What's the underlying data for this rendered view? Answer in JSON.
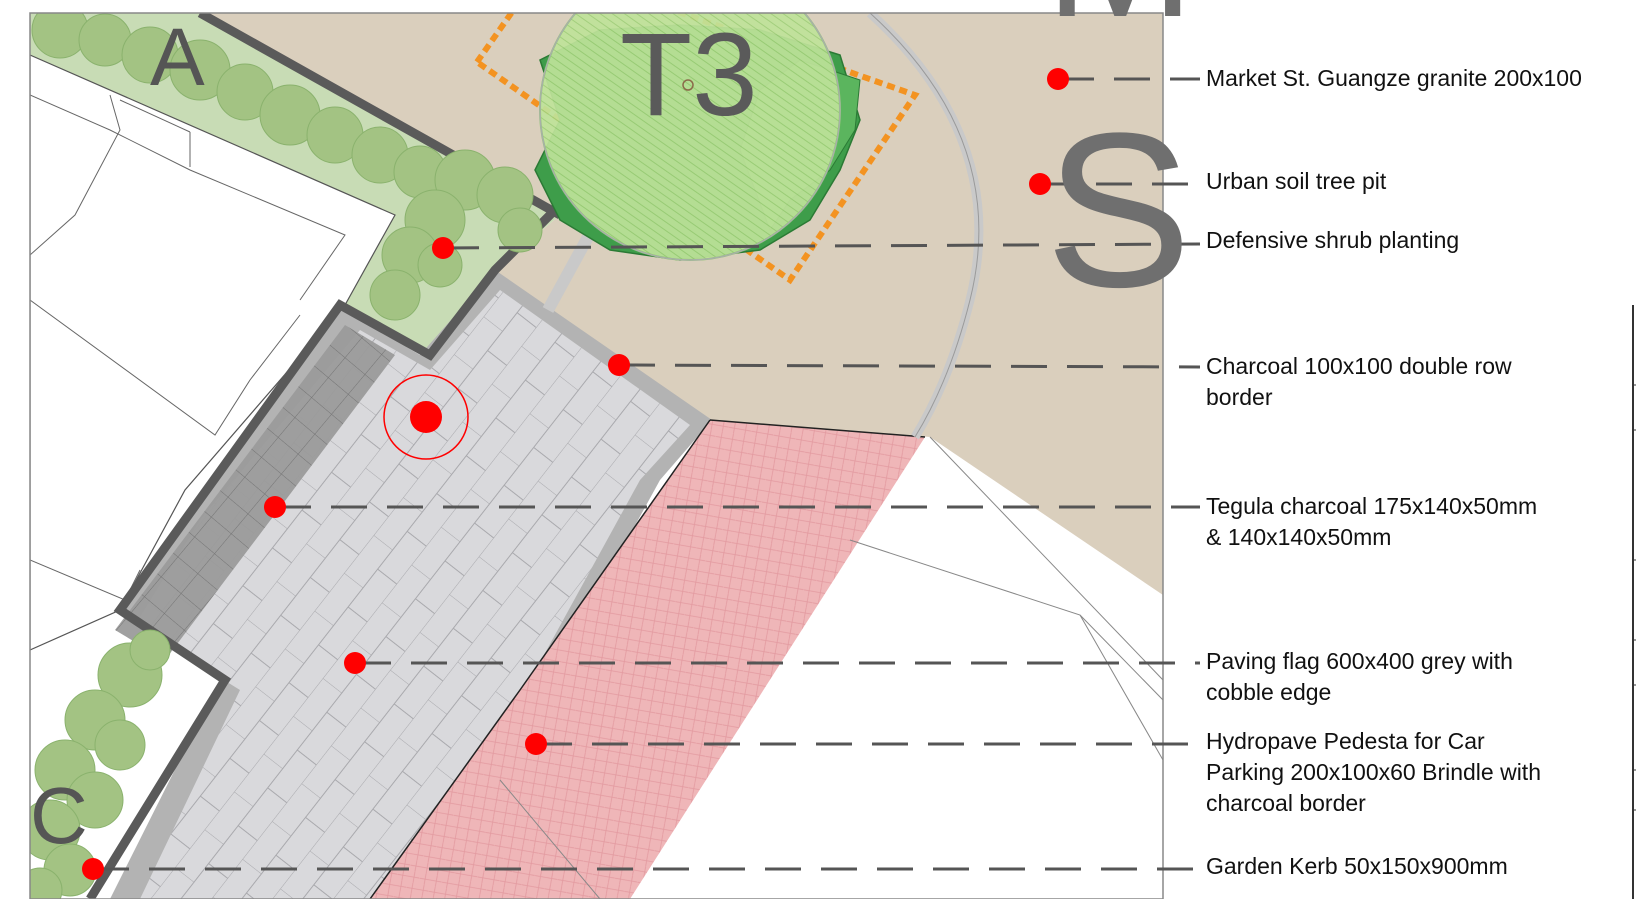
{
  "plan_letters": {
    "a": "A",
    "c": "C",
    "s": "S",
    "m": "M",
    "tree_tag": "T3"
  },
  "callouts": [
    {
      "id": "granite",
      "line1": "Market St. Guangze granite 200x100",
      "line2": "",
      "line3": ""
    },
    {
      "id": "tree-pit",
      "line1": "Urban soil tree pit",
      "line2": "",
      "line3": ""
    },
    {
      "id": "shrub",
      "line1": "Defensive shrub planting",
      "line2": "",
      "line3": ""
    },
    {
      "id": "charcoal-border",
      "line1": "Charcoal 100x100 double row",
      "line2": "border",
      "line3": ""
    },
    {
      "id": "tegula",
      "line1": "Tegula charcoal 175x140x50mm",
      "line2": "& 140x140x50mm",
      "line3": ""
    },
    {
      "id": "paving-flag",
      "line1": "Paving flag 600x400 grey with",
      "line2": "cobble edge",
      "line3": ""
    },
    {
      "id": "hydropave",
      "line1": "Hydropave Pedesta for Car",
      "line2": "Parking 200x100x60 Brindle with",
      "line3": "charcoal border"
    },
    {
      "id": "kerb",
      "line1": "Garden Kerb 50x150x900mm",
      "line2": "",
      "line3": ""
    }
  ],
  "colors": {
    "sand": "#dacfbd",
    "light_paving": "#d9d9dc",
    "dark_paving": "#9b9b9b",
    "border_grey": "#b3b3b3",
    "kerb": "#5a5a5a",
    "shrub": "#a3c383",
    "lawn_bg": "#c8dcb5",
    "brindle": "#efb6b8",
    "tree_light": "#b7dc8c",
    "tree_dark": "#3e9d4a",
    "tree_pit": "#f39321",
    "marker": "#ff0000",
    "leader": "#555555"
  }
}
